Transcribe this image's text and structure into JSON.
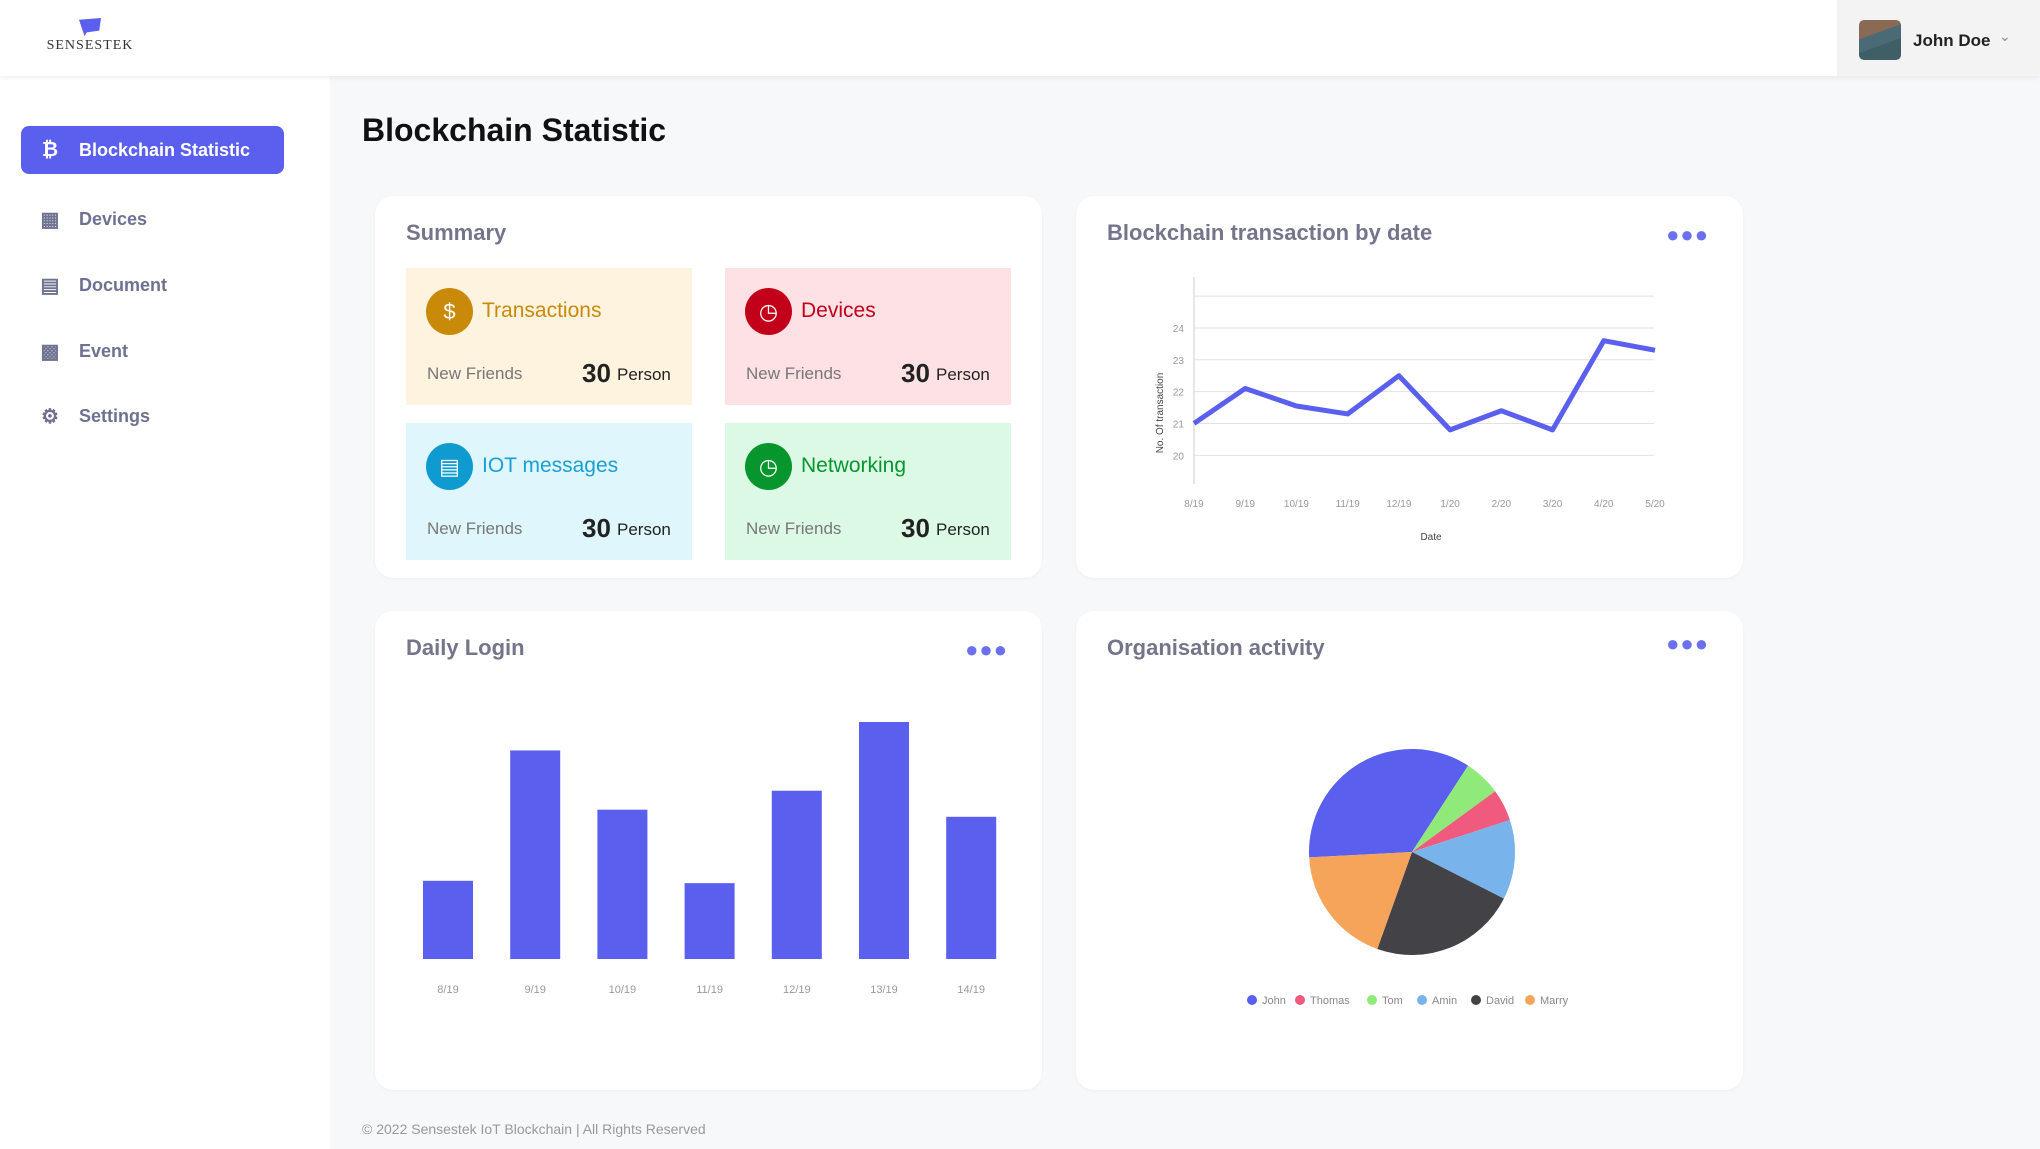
{
  "header": {
    "logo_text": "SENSESTEK",
    "user_name": "John Doe"
  },
  "sidebar": {
    "items": [
      {
        "label": "Blockchain Statistic",
        "icon": "bitcoin-icon",
        "active": true
      },
      {
        "label": "Devices",
        "icon": "grid-icon"
      },
      {
        "label": "Document",
        "icon": "document-icon"
      },
      {
        "label": "Event",
        "icon": "calendar-icon"
      },
      {
        "label": "Settings",
        "icon": "gear-icon"
      }
    ]
  },
  "page": {
    "title": "Blockchain Statistic"
  },
  "summary": {
    "title": "Summary",
    "tiles": [
      {
        "name": "Transactions",
        "label": "New Friends",
        "value": "30",
        "unit": "Person",
        "bg": "#fef3df",
        "accent": "#c98a0a",
        "text": "#c98a0a",
        "icon": "dollar-icon"
      },
      {
        "name": "Devices",
        "label": "New Friends",
        "value": "30",
        "unit": "Person",
        "bg": "#fde1e5",
        "accent": "#c2001a",
        "text": "#c2001a",
        "icon": "clock-icon"
      },
      {
        "name": "IOT messages",
        "label": "New Friends",
        "value": "30",
        "unit": "Person",
        "bg": "#e0f6fd",
        "accent": "#0f9bd0",
        "text": "#1a9fd2",
        "icon": "chat-icon"
      },
      {
        "name": "Networking",
        "label": "New Friends",
        "value": "30",
        "unit": "Person",
        "bg": "#dcf9e6",
        "accent": "#07952e",
        "text": "#07952e",
        "icon": "clock-icon"
      }
    ]
  },
  "cards": {
    "line_title": "Blockchain transaction by date",
    "bar_title": "Daily Login",
    "pie_title": "Organisation activity"
  },
  "footer": "© 2022 Sensestek IoT Blockchain | All Rights Reserved",
  "chart_data": [
    {
      "type": "line",
      "title": "Blockchain transaction by date",
      "xlabel": "Date",
      "ylabel": "No. Of transaction",
      "x": [
        "8/19",
        "9/19",
        "10/19",
        "11/19",
        "12/19",
        "1/20",
        "2/20",
        "3/20",
        "4/20",
        "5/20"
      ],
      "values": [
        21,
        22.1,
        21.55,
        21.3,
        22.5,
        20.8,
        21.4,
        20.8,
        23.6,
        23.3
      ],
      "yticks": [
        20,
        21,
        22,
        23,
        24
      ],
      "ylim": [
        19.1,
        25.6
      ],
      "grid": true,
      "color": "#5b5fed"
    },
    {
      "type": "bar",
      "title": "Daily Login",
      "categories": [
        "8/19",
        "9/19",
        "10/19",
        "11/19",
        "12/19",
        "13/19",
        "14/19"
      ],
      "values": [
        33,
        88,
        63,
        32,
        71,
        100,
        60
      ],
      "ylim": [
        0,
        100
      ],
      "color": "#5b5fed"
    },
    {
      "type": "pie",
      "title": "Organisation activity",
      "legend": "bottom",
      "slices": [
        {
          "name": "John",
          "value": 35,
          "color": "#5b5fed"
        },
        {
          "name": "Tom",
          "value": 5.8,
          "color": "#8fea7a"
        },
        {
          "name": "Thomas",
          "value": 5,
          "color": "#f05a7e"
        },
        {
          "name": "Amin",
          "value": 12.5,
          "color": "#78b3ec"
        },
        {
          "name": "David",
          "value": 23,
          "color": "#434247"
        },
        {
          "name": "Marry",
          "value": 18.7,
          "color": "#f5a45a"
        }
      ],
      "legend_order": [
        "John",
        "Thomas",
        "Tom",
        "Amin",
        "David",
        "Marry"
      ]
    }
  ]
}
